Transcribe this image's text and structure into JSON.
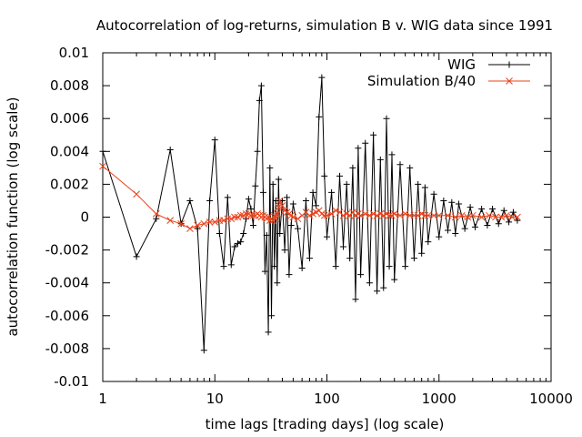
{
  "chart_data": {
    "type": "line",
    "title": "Autocorrelation of log-returns, simulation B v. WIG data since 1991",
    "xlabel": "time lags [trading days] (log scale)",
    "ylabel": "autocorrelation function (log scale)",
    "x_scale": "log",
    "xlim": [
      1,
      10000
    ],
    "ylim": [
      -0.01,
      0.01
    ],
    "x_ticks": [
      1,
      10,
      100,
      1000,
      10000
    ],
    "x_tick_labels": [
      "1",
      "10",
      "100",
      "1000",
      "10000"
    ],
    "y_ticks": [
      -0.01,
      -0.008,
      -0.006,
      -0.004,
      -0.002,
      0,
      0.002,
      0.004,
      0.006,
      0.008,
      0.01
    ],
    "y_tick_labels": [
      "-0.01",
      "-0.008",
      "-0.006",
      "-0.004",
      "-0.002",
      "0",
      "0.002",
      "0.004",
      "0.006",
      "0.008",
      "0.01"
    ],
    "grid": false,
    "legend_position": "top-right",
    "series": [
      {
        "name": "WIG",
        "color": "#000000",
        "marker": "plus",
        "x": [
          1,
          2,
          3,
          4,
          5,
          6,
          7,
          8,
          9,
          10,
          11,
          12,
          13,
          14,
          15,
          16,
          17,
          18,
          19,
          20,
          21,
          22,
          23,
          24,
          25,
          26,
          27,
          28,
          29,
          30,
          31,
          32,
          33,
          34,
          35,
          36,
          37,
          38,
          40,
          42,
          44,
          46,
          48,
          50,
          55,
          60,
          65,
          70,
          75,
          80,
          85,
          90,
          95,
          100,
          110,
          120,
          130,
          140,
          150,
          160,
          170,
          180,
          190,
          200,
          220,
          240,
          260,
          280,
          300,
          320,
          340,
          360,
          380,
          400,
          450,
          500,
          550,
          600,
          650,
          700,
          750,
          800,
          900,
          1000,
          1100,
          1200,
          1300,
          1400,
          1500,
          1700,
          1900,
          2100,
          2400,
          2700,
          3000,
          3400,
          3800,
          4200,
          4600,
          5000
        ],
        "y": [
          0.004,
          -0.0024,
          -0.0001,
          0.0041,
          -0.0004,
          0.001,
          -0.0007,
          -0.0081,
          0.001,
          0.0047,
          -0.001,
          -0.003,
          0.0012,
          -0.0029,
          -0.0018,
          -0.0016,
          -0.0015,
          -0.001,
          -0.0001,
          0.0011,
          0.0005,
          -0.0005,
          0.0019,
          0.004,
          0.0071,
          0.008,
          0.0015,
          -0.0033,
          -0.0011,
          -0.007,
          0.003,
          -0.006,
          0.002,
          -0.003,
          0.001,
          -0.004,
          0.0023,
          -0.001,
          0.001,
          -0.002,
          0.0012,
          -0.0035,
          -0.0005,
          0.0008,
          -0.0007,
          -0.0031,
          0.001,
          -0.0025,
          0.0015,
          0.0007,
          0.0061,
          0.0085,
          0.0025,
          -0.0012,
          0.0015,
          -0.003,
          0.0025,
          -0.0018,
          0.002,
          -0.0025,
          0.003,
          -0.005,
          0.0042,
          -0.0035,
          0.0045,
          -0.004,
          0.005,
          -0.0045,
          0.0035,
          -0.0043,
          0.006,
          -0.003,
          0.0038,
          -0.0038,
          0.0032,
          -0.003,
          0.003,
          -0.0025,
          0.002,
          -0.0022,
          0.0018,
          -0.0015,
          0.0014,
          -0.0012,
          0.001,
          -0.0008,
          0.0009,
          -0.001,
          0.0008,
          -0.0007,
          0.0006,
          -0.0006,
          0.0005,
          -0.0005,
          0.0005,
          -0.0004,
          0.0004,
          -0.0003,
          0.0003,
          -0.0002
        ]
      },
      {
        "name": "Simulation B/40",
        "color": "#e8451e",
        "marker": "x",
        "x": [
          1,
          2,
          3,
          4,
          5,
          6,
          7,
          8,
          9,
          10,
          11,
          12,
          13,
          14,
          15,
          16,
          17,
          18,
          19,
          20,
          21,
          22,
          23,
          24,
          25,
          26,
          27,
          28,
          29,
          30,
          31,
          32,
          33,
          34,
          35,
          36,
          37,
          38,
          40,
          42,
          44,
          46,
          48,
          50,
          55,
          60,
          65,
          70,
          75,
          80,
          85,
          90,
          95,
          100,
          110,
          120,
          130,
          140,
          150,
          160,
          170,
          180,
          190,
          200,
          220,
          240,
          260,
          280,
          300,
          320,
          340,
          360,
          380,
          400,
          450,
          500,
          550,
          600,
          650,
          700,
          750,
          800,
          900,
          1000,
          1200,
          1400,
          1600,
          1800,
          2000,
          2400,
          2800,
          3200,
          3600,
          4000,
          4500,
          5000
        ],
        "y": [
          0.0031,
          0.0014,
          0.0002,
          -0.0002,
          -0.0004,
          -0.0007,
          -0.0005,
          -0.0004,
          -0.0003,
          -0.0003,
          -0.0002,
          -0.0002,
          -0.0001,
          -0.0001,
          0.0,
          0.0,
          0.0001,
          0.0001,
          0.0002,
          0.0002,
          0.0001,
          0.0001,
          0.0001,
          0.0002,
          0.0001,
          0.0,
          0.0001,
          0.0,
          -0.0001,
          0.0,
          -0.0002,
          -0.0001,
          -0.0002,
          0.0001,
          -0.0001,
          0.0002,
          0.0006,
          0.001,
          0.0007,
          0.0004,
          0.0003,
          0.0002,
          0.0001,
          0.0,
          -0.0001,
          0.0001,
          0.0003,
          0.0001,
          0.0002,
          0.0003,
          0.0004,
          0.0002,
          0.0001,
          0.0001,
          0.0002,
          0.0004,
          0.0003,
          0.0001,
          0.0002,
          0.0001,
          0.0003,
          0.0001,
          0.0002,
          0.0001,
          0.0002,
          0.0001,
          0.0002,
          0.0001,
          0.0002,
          0.0001,
          0.0002,
          0.0001,
          0.0001,
          0.0002,
          0.0001,
          0.0002,
          0.0001,
          0.0001,
          0.0001,
          0.0002,
          0.0001,
          0.0001,
          0.0001,
          0.0001,
          0.0001,
          0.0,
          0.0001,
          0.0,
          0.0001,
          0.0,
          0.0001,
          0.0,
          0.0,
          0.0001,
          0.0,
          0.0
        ]
      }
    ]
  }
}
